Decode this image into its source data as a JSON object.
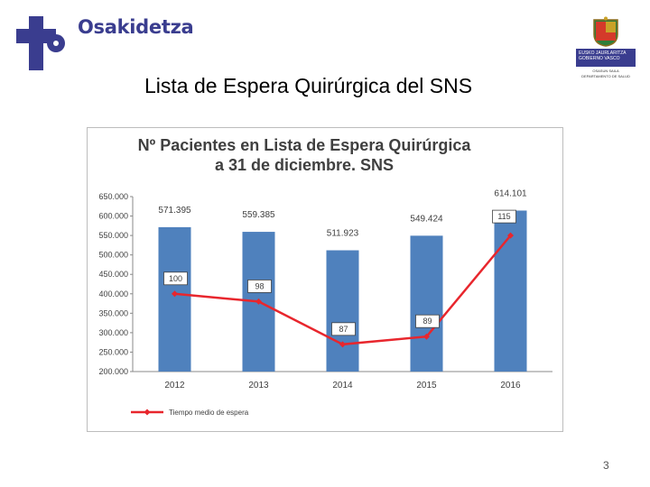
{
  "header": {
    "brand_name": "Osakidetza",
    "logo_icon": "osakidetza-cross-icon",
    "gov_logo_icon": "eusko-jaurlaritza-seal-icon",
    "gov_line1": "EUSKO JAURLARITZA",
    "gov_line2": "GOBIERNO VASCO",
    "gov_sub1": "OSASUN SAILA",
    "gov_sub2": "DEPARTAMENTO DE SALUD",
    "brand_color": "#3a3d8f"
  },
  "slide": {
    "title": "Lista de Espera Quirúrgica del SNS",
    "page_number": "3"
  },
  "chart_data": {
    "type": "bar",
    "title_line1": "Nº Pacientes en Lista de Espera Quirúrgica",
    "title_line2": "a 31 de diciembre. SNS",
    "categories": [
      "2012",
      "2013",
      "2014",
      "2015",
      "2016"
    ],
    "series": [
      {
        "name": "Nº Pacientes",
        "type": "bar",
        "color": "#4f81bd",
        "values": [
          571395,
          559385,
          511923,
          549424,
          614101
        ],
        "labels": [
          "571.395",
          "559.385",
          "511.923",
          "549.424",
          "614.101"
        ]
      },
      {
        "name": "Tiempo medio de espera",
        "type": "line",
        "color": "#e8262d",
        "values": [
          100,
          98,
          87,
          89,
          115
        ],
        "labels": [
          "100",
          "98",
          "87",
          "89",
          "115"
        ]
      }
    ],
    "ylim": [
      200000,
      650000
    ],
    "yticks": [
      "200.000",
      "250.000",
      "300.000",
      "350.000",
      "400.000",
      "450.000",
      "500.000",
      "550.000",
      "600.000",
      "650.000"
    ],
    "legend_label": "Tiempo medio de espera",
    "legend_position": "bottom-left"
  }
}
